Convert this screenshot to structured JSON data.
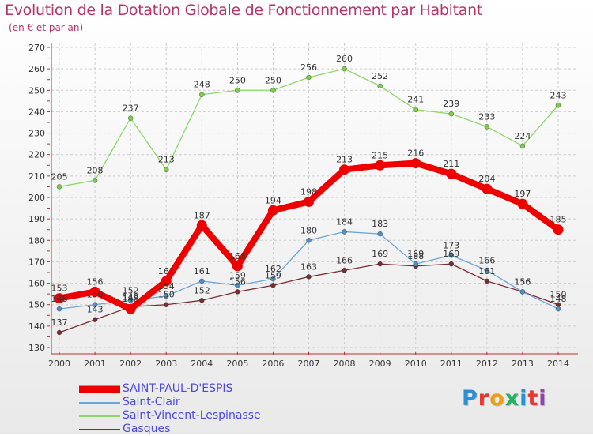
{
  "chart_data": {
    "type": "line",
    "title": "Evolution de la Dotation Globale de Fonctionnement par Habitant",
    "subtitle": "(en € et par an)",
    "x": [
      "2000",
      "2001",
      "2002",
      "2003",
      "2004",
      "2005",
      "2006",
      "2007",
      "2008",
      "2009",
      "2010",
      "2011",
      "2012",
      "2013",
      "2014"
    ],
    "ylim": [
      130,
      270
    ],
    "yticks": [
      130,
      140,
      150,
      160,
      170,
      180,
      190,
      200,
      210,
      220,
      230,
      240,
      250,
      260,
      270
    ],
    "grid": true,
    "legend_position": "bottom-left",
    "series": [
      {
        "name": "SAINT-PAUL-D'ESPIS",
        "color": "#ee0000",
        "values": [
          153,
          156,
          148,
          161,
          187,
          168,
          194,
          198,
          213,
          215,
          216,
          211,
          204,
          197,
          185
        ],
        "labels": [
          "153",
          "156",
          "148",
          "161",
          "187",
          "168",
          "194",
          "198",
          "213",
          "215",
          "216",
          "211",
          "204",
          "197",
          "185"
        ]
      },
      {
        "name": "Saint-Clair",
        "color": "#6aa6d6",
        "values": [
          148,
          150,
          152,
          154,
          161,
          159,
          162,
          180,
          184,
          183,
          169,
          173,
          166,
          156,
          148
        ],
        "labels": [
          "148",
          "150",
          "152",
          "154",
          "161",
          "159",
          "162",
          "180",
          "184",
          "183",
          "169",
          "173",
          "166",
          "156",
          "148"
        ]
      },
      {
        "name": "Saint-Vincent-Lespinasse",
        "color": "#8ed66a",
        "values": [
          205,
          208,
          237,
          213,
          248,
          250,
          250,
          256,
          260,
          252,
          241,
          239,
          233,
          224,
          243
        ],
        "labels": [
          "205",
          "208",
          "237",
          "213",
          "248",
          "250",
          "250",
          "256",
          "260",
          "252",
          "241",
          "239",
          "233",
          "224",
          "243"
        ]
      },
      {
        "name": "Gasques",
        "color": "#7a2c36",
        "values": [
          137,
          143,
          149,
          150,
          152,
          156,
          159,
          163,
          166,
          169,
          168,
          169,
          161,
          156,
          150
        ],
        "labels": [
          "137",
          "143",
          "149",
          "150",
          "152",
          "156",
          "159",
          "163",
          "166",
          "169",
          "168",
          "169",
          "161",
          "156",
          "150"
        ]
      }
    ]
  },
  "logo": {
    "text": "Proxiti",
    "colors": [
      "#2b8fd6",
      "#e23a2e",
      "#f39c12",
      "#27ae60",
      "#2b8fd6",
      "#e23a2e",
      "#8e44ad"
    ]
  }
}
